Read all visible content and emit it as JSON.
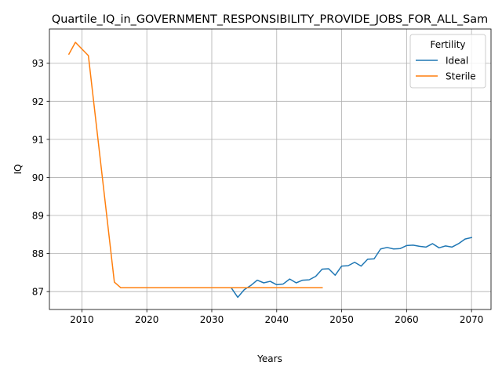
{
  "chart_data": {
    "type": "line",
    "title": "Quartile_IQ_in_GOVERNMENT_RESPONSIBILITY_PROVIDE_JOBS_FOR_ALL_Sam",
    "xlabel": "Years",
    "ylabel": "IQ",
    "xlim": [
      2005,
      2073
    ],
    "ylim": [
      86.53,
      93.9
    ],
    "xticks": [
      2010,
      2020,
      2030,
      2040,
      2050,
      2060,
      2070
    ],
    "yticks": [
      87,
      88,
      89,
      90,
      91,
      92,
      93
    ],
    "grid": true,
    "legend": {
      "title": "Fertility",
      "position": "top-right"
    },
    "series": [
      {
        "name": "Ideal",
        "color": "#1f77b4",
        "x": [
          2033,
          2034,
          2035,
          2036,
          2037,
          2038,
          2039,
          2040,
          2041,
          2042,
          2043,
          2044,
          2045,
          2046,
          2047,
          2048,
          2049,
          2050,
          2051,
          2052,
          2053,
          2054,
          2055,
          2056,
          2057,
          2058,
          2059,
          2060,
          2061,
          2062,
          2063,
          2064,
          2065,
          2066,
          2067,
          2068,
          2069,
          2070
        ],
        "y": [
          87.1,
          86.85,
          87.05,
          87.16,
          87.3,
          87.23,
          87.27,
          87.18,
          87.2,
          87.33,
          87.23,
          87.3,
          87.31,
          87.4,
          87.59,
          87.6,
          87.43,
          87.67,
          87.68,
          87.77,
          87.67,
          87.85,
          87.86,
          88.12,
          88.16,
          88.12,
          88.13,
          88.21,
          88.22,
          88.19,
          88.17,
          88.26,
          88.15,
          88.2,
          88.17,
          88.26,
          88.38,
          88.42
        ]
      },
      {
        "name": "Sterile",
        "color": "#ff7f0e",
        "x": [
          2008,
          2009,
          2011,
          2015,
          2016,
          2020,
          2030,
          2040,
          2047
        ],
        "y": [
          93.24,
          93.55,
          93.2,
          87.25,
          87.1,
          87.1,
          87.1,
          87.1,
          87.1
        ]
      }
    ]
  }
}
